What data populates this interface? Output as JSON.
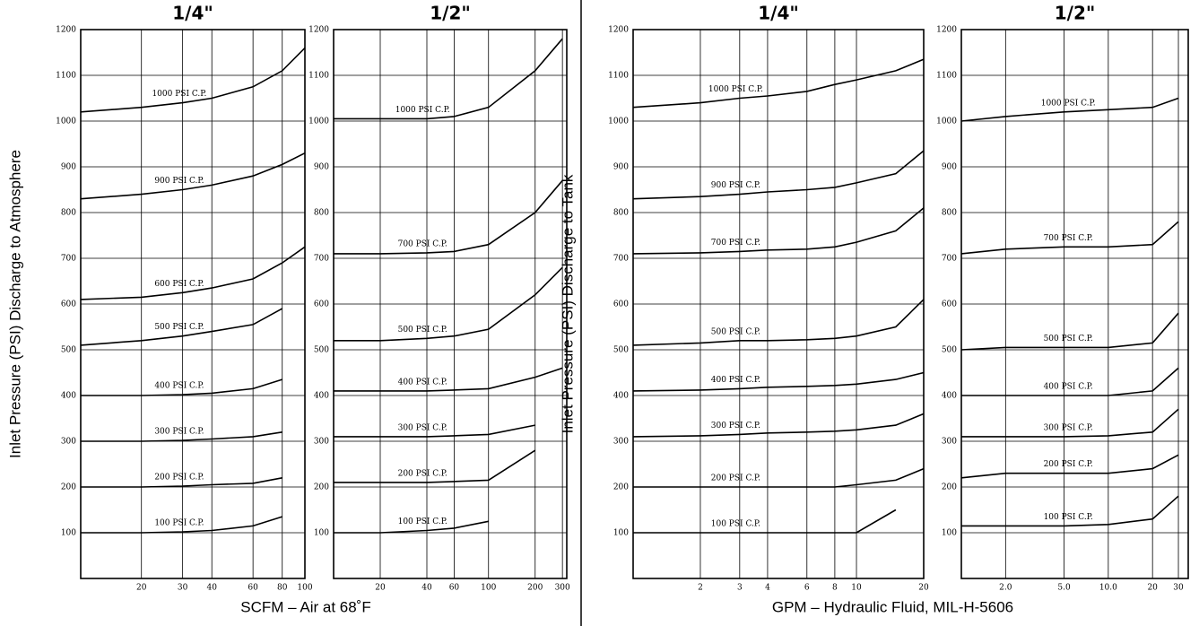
{
  "chart_data": [
    {
      "type": "line",
      "title": "1/4\"",
      "log_x": true,
      "grid": true,
      "color": "#000000",
      "ylabel": "Inlet Pressure (PSI) Discharge to Atmosphere",
      "xlabel": "SCFM – Air at 68˚F",
      "xlim": [
        11,
        100
      ],
      "xticks": [
        20,
        30,
        40,
        60,
        80,
        100
      ],
      "ylim": [
        0,
        1200
      ],
      "yticks": [
        100,
        200,
        300,
        400,
        500,
        600,
        700,
        800,
        900,
        1000,
        1100,
        1200
      ],
      "x": [
        11,
        20,
        30,
        40,
        60,
        80,
        100
      ],
      "series": [
        {
          "name": "1000 PSI C.P.",
          "values": [
            1020,
            1030,
            1040,
            1050,
            1075,
            1110,
            1160
          ]
        },
        {
          "name": "900 PSI C.P.",
          "values": [
            830,
            840,
            850,
            860,
            880,
            905,
            930
          ]
        },
        {
          "name": "600 PSI C.P.",
          "values": [
            610,
            615,
            625,
            635,
            655,
            690,
            725
          ]
        },
        {
          "name": "500 PSI C.P.",
          "values": [
            510,
            520,
            530,
            540,
            555,
            590,
            null
          ]
        },
        {
          "name": "400 PSI C.P.",
          "values": [
            400,
            400,
            402,
            405,
            415,
            435,
            null
          ]
        },
        {
          "name": "300 PSI C.P.",
          "values": [
            300,
            300,
            302,
            305,
            310,
            320,
            null
          ]
        },
        {
          "name": "200 PSI C.P.",
          "values": [
            200,
            200,
            202,
            205,
            208,
            220,
            null
          ]
        },
        {
          "name": "100 PSI C.P.",
          "values": [
            100,
            100,
            102,
            105,
            115,
            135,
            null
          ]
        }
      ]
    },
    {
      "type": "line",
      "title": "1/2\"",
      "log_x": true,
      "grid": true,
      "color": "#000000",
      "xlim": [
        10,
        320
      ],
      "xticks": [
        20,
        40,
        60,
        100,
        200,
        300
      ],
      "ylim": [
        0,
        1200
      ],
      "yticks": [
        100,
        200,
        300,
        400,
        500,
        600,
        700,
        800,
        900,
        1000,
        1100,
        1200
      ],
      "x": [
        10,
        20,
        40,
        60,
        100,
        200,
        300
      ],
      "series": [
        {
          "name": "1000 PSI C.P.",
          "values": [
            1005,
            1005,
            1005,
            1010,
            1030,
            1110,
            1180
          ]
        },
        {
          "name": "700 PSI C.P.",
          "values": [
            710,
            710,
            712,
            715,
            730,
            800,
            870
          ]
        },
        {
          "name": "500 PSI C.P.",
          "values": [
            520,
            520,
            525,
            530,
            545,
            620,
            680
          ]
        },
        {
          "name": "400 PSI C.P.",
          "values": [
            410,
            410,
            410,
            412,
            415,
            440,
            460
          ]
        },
        {
          "name": "300 PSI C.P.",
          "values": [
            310,
            310,
            310,
            312,
            315,
            335,
            null
          ]
        },
        {
          "name": "200 PSI C.P.",
          "values": [
            210,
            210,
            210,
            212,
            215,
            280,
            null
          ]
        },
        {
          "name": "100 PSI C.P.",
          "values": [
            100,
            100,
            105,
            110,
            125,
            null,
            null
          ]
        }
      ]
    },
    {
      "type": "line",
      "title": "1/4\"",
      "log_x": true,
      "grid": true,
      "color": "#000000",
      "ylabel": "Inlet Pressure (PSI) Discharge to Tank",
      "xlabel": "GPM – Hydraulic Fluid, MIL-H-5606",
      "xlim": [
        1,
        20
      ],
      "xticks": [
        2,
        3,
        4,
        6,
        8,
        10,
        20
      ],
      "ylim": [
        0,
        1200
      ],
      "yticks": [
        100,
        200,
        300,
        400,
        500,
        600,
        700,
        800,
        900,
        1000,
        1100,
        1200
      ],
      "x": [
        1,
        2,
        3,
        4,
        6,
        8,
        10,
        15,
        20
      ],
      "series": [
        {
          "name": "1000 PSI C.P.",
          "values": [
            1030,
            1040,
            1050,
            1055,
            1065,
            1080,
            1090,
            1110,
            1135
          ]
        },
        {
          "name": "900 PSI C.P.",
          "values": [
            830,
            835,
            840,
            845,
            850,
            855,
            865,
            885,
            935
          ]
        },
        {
          "name": "700 PSI C.P.",
          "values": [
            710,
            712,
            715,
            718,
            720,
            725,
            735,
            760,
            810
          ]
        },
        {
          "name": "500 PSI C.P.",
          "values": [
            510,
            515,
            520,
            520,
            522,
            525,
            530,
            550,
            610
          ]
        },
        {
          "name": "400 PSI C.P.",
          "values": [
            410,
            412,
            415,
            418,
            420,
            422,
            425,
            435,
            450
          ]
        },
        {
          "name": "300 PSI C.P.",
          "values": [
            310,
            312,
            315,
            318,
            320,
            322,
            325,
            335,
            360
          ]
        },
        {
          "name": "200 PSI C.P.",
          "values": [
            200,
            200,
            200,
            200,
            200,
            200,
            205,
            215,
            240
          ]
        },
        {
          "name": "100 PSI C.P.",
          "values": [
            100,
            100,
            100,
            100,
            100,
            100,
            100,
            150,
            null
          ]
        }
      ]
    },
    {
      "type": "line",
      "title": "1/2\"",
      "log_x": true,
      "grid": true,
      "color": "#000000",
      "xlim": [
        1,
        35
      ],
      "xticks": [
        {
          "value": 2,
          "label": "2.0"
        },
        {
          "value": 5,
          "label": "5.0"
        },
        {
          "value": 10,
          "label": "10.0"
        },
        20,
        30
      ],
      "ylim": [
        0,
        1200
      ],
      "yticks": [
        100,
        200,
        300,
        400,
        500,
        600,
        700,
        800,
        900,
        1000,
        1100,
        1200
      ],
      "x": [
        1,
        2,
        5,
        10,
        20,
        30
      ],
      "series": [
        {
          "name": "1000 PSI C.P.",
          "values": [
            1000,
            1010,
            1020,
            1025,
            1030,
            1050
          ]
        },
        {
          "name": "700 PSI C.P.",
          "values": [
            710,
            720,
            725,
            725,
            730,
            780
          ]
        },
        {
          "name": "500 PSI C.P.",
          "values": [
            500,
            505,
            505,
            505,
            515,
            580
          ]
        },
        {
          "name": "400 PSI C.P.",
          "values": [
            400,
            400,
            400,
            400,
            410,
            460
          ]
        },
        {
          "name": "300 PSI C.P.",
          "values": [
            310,
            310,
            310,
            312,
            320,
            370
          ]
        },
        {
          "name": "200 PSI C.P.",
          "values": [
            220,
            230,
            230,
            230,
            240,
            270
          ]
        },
        {
          "name": "100 PSI C.P.",
          "values": [
            115,
            115,
            115,
            118,
            130,
            180
          ]
        }
      ]
    }
  ]
}
